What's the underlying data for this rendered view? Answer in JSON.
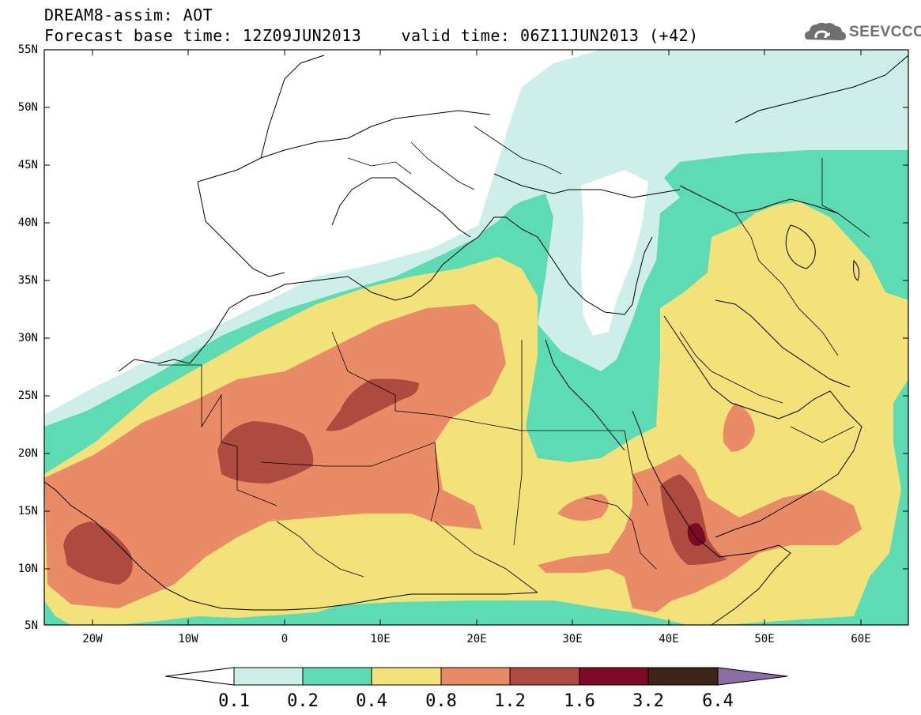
{
  "header": {
    "title_line1": "DREAM8-assim: AOT",
    "title_line2": "Forecast base time: 12Z09JUN2013    valid time: 06Z11JUN2013 (+42)"
  },
  "logo": {
    "text": "SEEVCCC",
    "icon": "cloud-logo-icon"
  },
  "map": {
    "lat_ticks": [
      "55N",
      "50N",
      "45N",
      "40N",
      "35N",
      "30N",
      "25N",
      "20N",
      "15N",
      "10N",
      "5N"
    ],
    "lon_ticks": [
      "20W",
      "10W",
      "0",
      "10E",
      "20E",
      "30E",
      "40E",
      "50E",
      "60E"
    ],
    "colors": {
      "c0_1": "#cdeee9",
      "c0_2": "#5ddcb4",
      "c0_4": "#f3e27a",
      "c0_8": "#e98b66",
      "c1_2": "#ad4b40",
      "c1_6": "#7c0a27",
      "c3_2": "#3e2416",
      "c6_4": "#8c6ea6"
    }
  },
  "colorbar": {
    "labels": [
      "0.1",
      "0.2",
      "0.4",
      "0.8",
      "1.2",
      "1.6",
      "3.2",
      "6.4"
    ],
    "colors": [
      "#ffffff",
      "#cdeee9",
      "#5ddcb4",
      "#f3e27a",
      "#e98b66",
      "#ad4b40",
      "#7c0a27",
      "#3e2416",
      "#8c6ea6"
    ]
  }
}
